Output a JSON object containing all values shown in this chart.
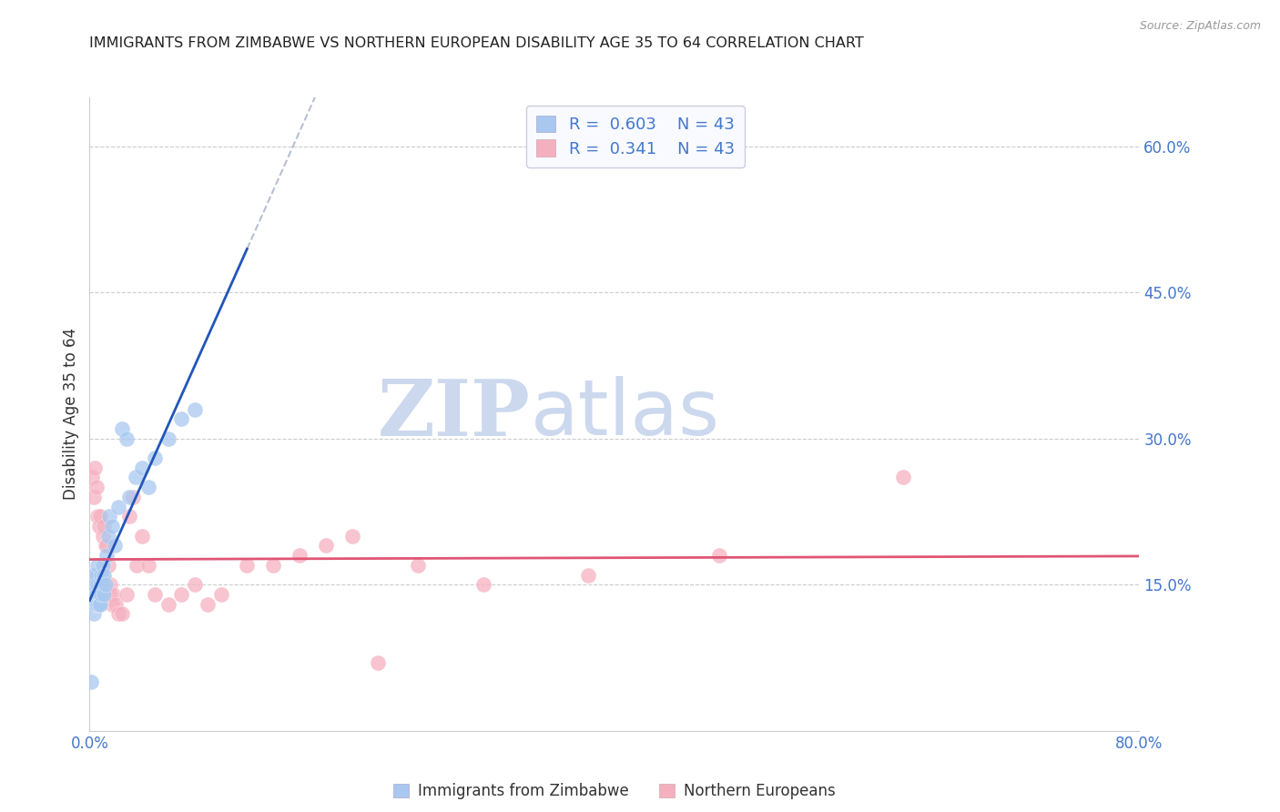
{
  "title": "IMMIGRANTS FROM ZIMBABWE VS NORTHERN EUROPEAN DISABILITY AGE 35 TO 64 CORRELATION CHART",
  "source": "Source: ZipAtlas.com",
  "ylabel": "Disability Age 35 to 64",
  "xlim": [
    0.0,
    0.8
  ],
  "ylim": [
    0.0,
    0.65
  ],
  "xticks": [
    0.0,
    0.1,
    0.2,
    0.3,
    0.4,
    0.5,
    0.6,
    0.7,
    0.8
  ],
  "xticklabels": [
    "0.0%",
    "",
    "",
    "",
    "",
    "",
    "",
    "",
    "80.0%"
  ],
  "yticks_right": [
    0.15,
    0.3,
    0.45,
    0.6
  ],
  "ytick_labels_right": [
    "15.0%",
    "30.0%",
    "45.0%",
    "60.0%"
  ],
  "R_zimbabwe": 0.603,
  "N_zimbabwe": 43,
  "R_northern": 0.341,
  "N_northern": 43,
  "color_zimbabwe": "#a8c8f0",
  "color_northern": "#f5b0c0",
  "color_line_zimbabwe": "#2255bb",
  "color_line_northern": "#e05575",
  "watermark_zip": "ZIP",
  "watermark_atlas": "atlas",
  "watermark_color": "#ccd8ee",
  "title_color": "#222222",
  "axis_label_color": "#333333",
  "tick_color": "#4477cc",
  "grid_color": "#cccccc",
  "zimbabwe_x": [
    0.001,
    0.001,
    0.002,
    0.002,
    0.003,
    0.003,
    0.003,
    0.004,
    0.004,
    0.005,
    0.005,
    0.005,
    0.006,
    0.006,
    0.006,
    0.007,
    0.007,
    0.008,
    0.008,
    0.009,
    0.009,
    0.01,
    0.01,
    0.011,
    0.011,
    0.012,
    0.013,
    0.014,
    0.015,
    0.017,
    0.019,
    0.022,
    0.025,
    0.028,
    0.03,
    0.035,
    0.04,
    0.045,
    0.05,
    0.06,
    0.07,
    0.08,
    0.001
  ],
  "zimbabwe_y": [
    0.14,
    0.16,
    0.13,
    0.15,
    0.12,
    0.14,
    0.16,
    0.13,
    0.15,
    0.13,
    0.14,
    0.16,
    0.13,
    0.15,
    0.17,
    0.14,
    0.13,
    0.15,
    0.13,
    0.14,
    0.16,
    0.15,
    0.17,
    0.14,
    0.16,
    0.15,
    0.18,
    0.2,
    0.22,
    0.21,
    0.19,
    0.23,
    0.31,
    0.3,
    0.24,
    0.26,
    0.27,
    0.25,
    0.28,
    0.3,
    0.32,
    0.33,
    0.05
  ],
  "northern_x": [
    0.002,
    0.003,
    0.004,
    0.005,
    0.006,
    0.007,
    0.008,
    0.009,
    0.01,
    0.011,
    0.012,
    0.013,
    0.014,
    0.015,
    0.016,
    0.017,
    0.018,
    0.02,
    0.022,
    0.025,
    0.028,
    0.03,
    0.033,
    0.036,
    0.04,
    0.045,
    0.05,
    0.06,
    0.07,
    0.08,
    0.09,
    0.1,
    0.12,
    0.14,
    0.16,
    0.18,
    0.2,
    0.22,
    0.25,
    0.3,
    0.38,
    0.48,
    0.62
  ],
  "northern_y": [
    0.26,
    0.24,
    0.27,
    0.25,
    0.22,
    0.21,
    0.22,
    0.15,
    0.2,
    0.21,
    0.19,
    0.19,
    0.17,
    0.14,
    0.15,
    0.13,
    0.14,
    0.13,
    0.12,
    0.12,
    0.14,
    0.22,
    0.24,
    0.17,
    0.2,
    0.17,
    0.14,
    0.13,
    0.14,
    0.15,
    0.13,
    0.14,
    0.17,
    0.17,
    0.18,
    0.19,
    0.2,
    0.07,
    0.17,
    0.15,
    0.16,
    0.18,
    0.26
  ],
  "background_color": "#ffffff",
  "fig_width": 14.06,
  "fig_height": 8.92,
  "zim_line_xmax": 0.12,
  "nor_line_xmax": 0.8
}
